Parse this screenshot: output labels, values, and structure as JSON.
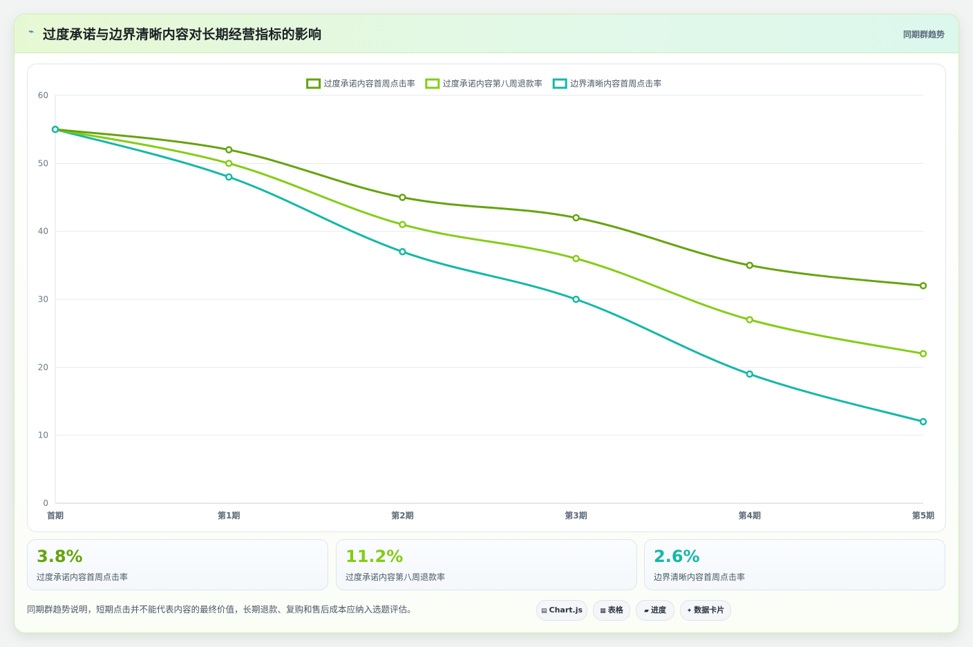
{
  "header": {
    "icon": "⌁",
    "title": "过度承诺与边界清晰内容对长期经营指标的影响",
    "tag": "同期群趋势"
  },
  "chart_data": {
    "type": "line",
    "categories": [
      "首期",
      "第1期",
      "第2期",
      "第3期",
      "第4期",
      "第5期"
    ],
    "series": [
      {
        "name": "过度承诺内容首周点击率",
        "color": "#65a30d",
        "values": [
          55,
          52,
          45,
          42,
          35,
          32
        ]
      },
      {
        "name": "过度承诺内容第八周退款率",
        "color": "#84cc16",
        "values": [
          55,
          50,
          41,
          36,
          27,
          22
        ]
      },
      {
        "name": "边界清晰内容首周点击率",
        "color": "#14b8a6",
        "values": [
          55,
          48,
          37,
          30,
          19,
          12
        ]
      }
    ],
    "ylim": [
      0,
      60
    ],
    "yticks": [
      0,
      10,
      20,
      30,
      40,
      50,
      60
    ],
    "grid": true,
    "legend": "top-center"
  },
  "stats": [
    {
      "value": "3.8%",
      "label": "过度承诺内容首周点击率",
      "color": "#65a30d"
    },
    {
      "value": "11.2%",
      "label": "过度承诺内容第八周退款率",
      "color": "#84cc16"
    },
    {
      "value": "2.6%",
      "label": "边界清晰内容首周点击率",
      "color": "#14b8a6"
    }
  ],
  "footer": {
    "note": "同期群趋势说明，短期点击并不能代表内容的最终价值，长期退款、复购和售后成本应纳入选题评估。",
    "pills": [
      {
        "icon": "▤",
        "label": "Chart.js"
      },
      {
        "icon": "▦",
        "label": "表格"
      },
      {
        "icon": "▰",
        "label": "进度"
      },
      {
        "icon": "✦",
        "label": "数据卡片"
      }
    ]
  }
}
